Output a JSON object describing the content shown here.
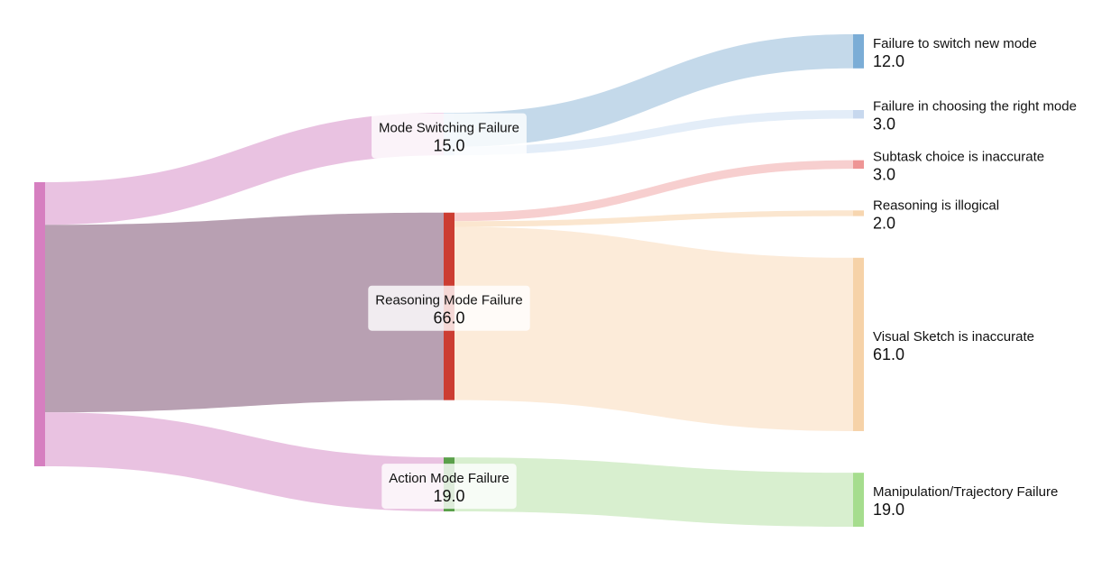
{
  "chart_data": {
    "type": "sankey",
    "root_color": "#d67fc0",
    "flows": [
      {
        "name": "Mode Switching Failure",
        "value": 15,
        "value_label": "15.0",
        "color": "#c6dbef",
        "link_color": "#e9c2e1",
        "children": [
          {
            "name": "Failure to switch new mode",
            "value": 12,
            "value_label": "12.0",
            "color": "#7badd6",
            "link_color": "#c4d9ea"
          },
          {
            "name": "Failure in choosing the right mode",
            "value": 3,
            "value_label": "3.0",
            "color": "#c7d8ee",
            "link_color": "#e3edf8"
          }
        ]
      },
      {
        "name": "Reasoning Mode Failure",
        "value": 66,
        "value_label": "66.0",
        "color": "#cc3d32",
        "link_color": "#b8a0b2",
        "children": [
          {
            "name": "Subtask choice is inaccurate",
            "value": 3,
            "value_label": "3.0",
            "color": "#ee9595",
            "link_color": "#f7cfcf"
          },
          {
            "name": "Reasoning is illogical",
            "value": 2,
            "value_label": "2.0",
            "color": "#f7d6b0",
            "link_color": "#fbe6cf"
          },
          {
            "name": "Visual Sketch is inaccurate",
            "value": 61,
            "value_label": "61.0",
            "color": "#f6d2a8",
            "link_color": "#fcebd9"
          }
        ]
      },
      {
        "name": "Action Mode Failure",
        "value": 19,
        "value_label": "19.0",
        "color": "#5aa04a",
        "link_color": "#e9c2e1",
        "children": [
          {
            "name": "Manipulation/Trajectory Failure",
            "value": 19,
            "value_label": "19.0",
            "color": "#a6dd8e",
            "link_color": "#d8efcf"
          }
        ]
      }
    ]
  }
}
